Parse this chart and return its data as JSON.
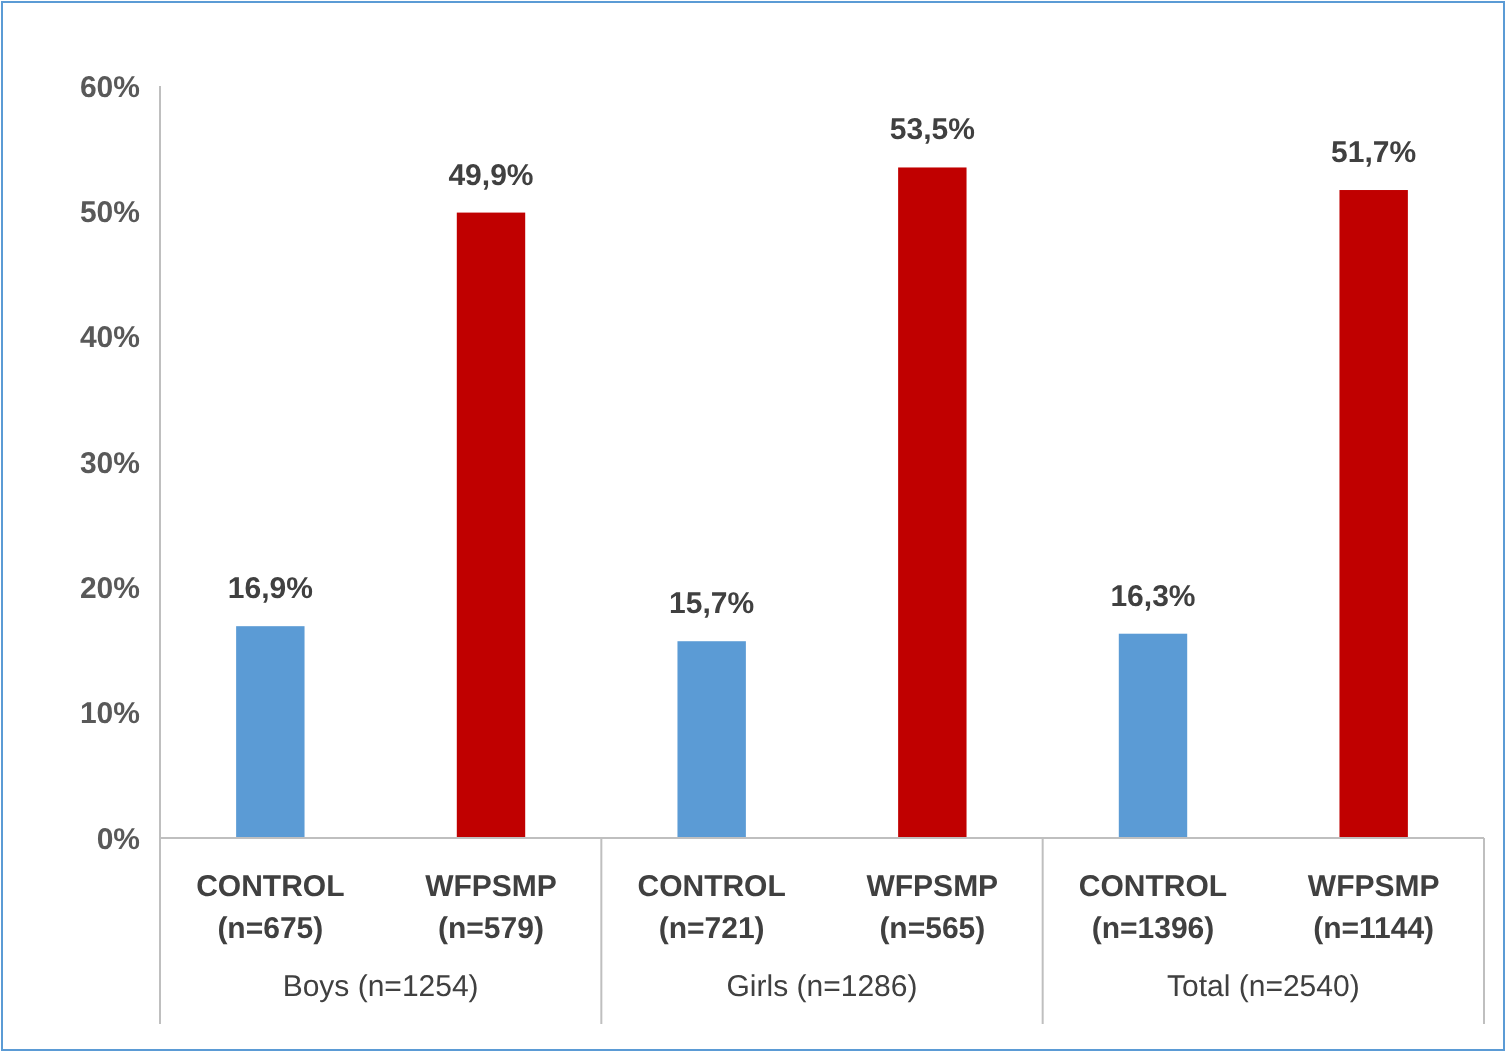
{
  "chart_data": {
    "type": "bar",
    "categories": [
      "CONTROL (n=675)",
      "WFPSMP (n=579)",
      "CONTROL (n=721)",
      "WFPSMP (n=565)",
      "CONTROL (n=1396)",
      "WFPSMP (n=1144)"
    ],
    "values": [
      16.9,
      49.9,
      15.7,
      53.5,
      16.3,
      51.7
    ],
    "colors": [
      "#5b9bd5",
      "#c00000",
      "#5b9bd5",
      "#c00000",
      "#5b9bd5",
      "#c00000"
    ],
    "value_labels": [
      "16,9%",
      "49,9%",
      "15,7%",
      "53,5%",
      "16,3%",
      "51,7%"
    ],
    "annotations": [
      "Boys (n=1254)",
      "Girls (n=1286)",
      "Total (n=2540)"
    ],
    "ylim": [
      0,
      60
    ],
    "yticks": [
      {
        "value": 0,
        "label": "0%"
      },
      {
        "value": 10,
        "label": "10%"
      },
      {
        "value": 20,
        "label": "20%"
      },
      {
        "value": 30,
        "label": "30%"
      },
      {
        "value": 40,
        "label": "40%"
      },
      {
        "value": 50,
        "label": "50%"
      },
      {
        "value": 60,
        "label": "60%"
      }
    ],
    "grid": false
  }
}
